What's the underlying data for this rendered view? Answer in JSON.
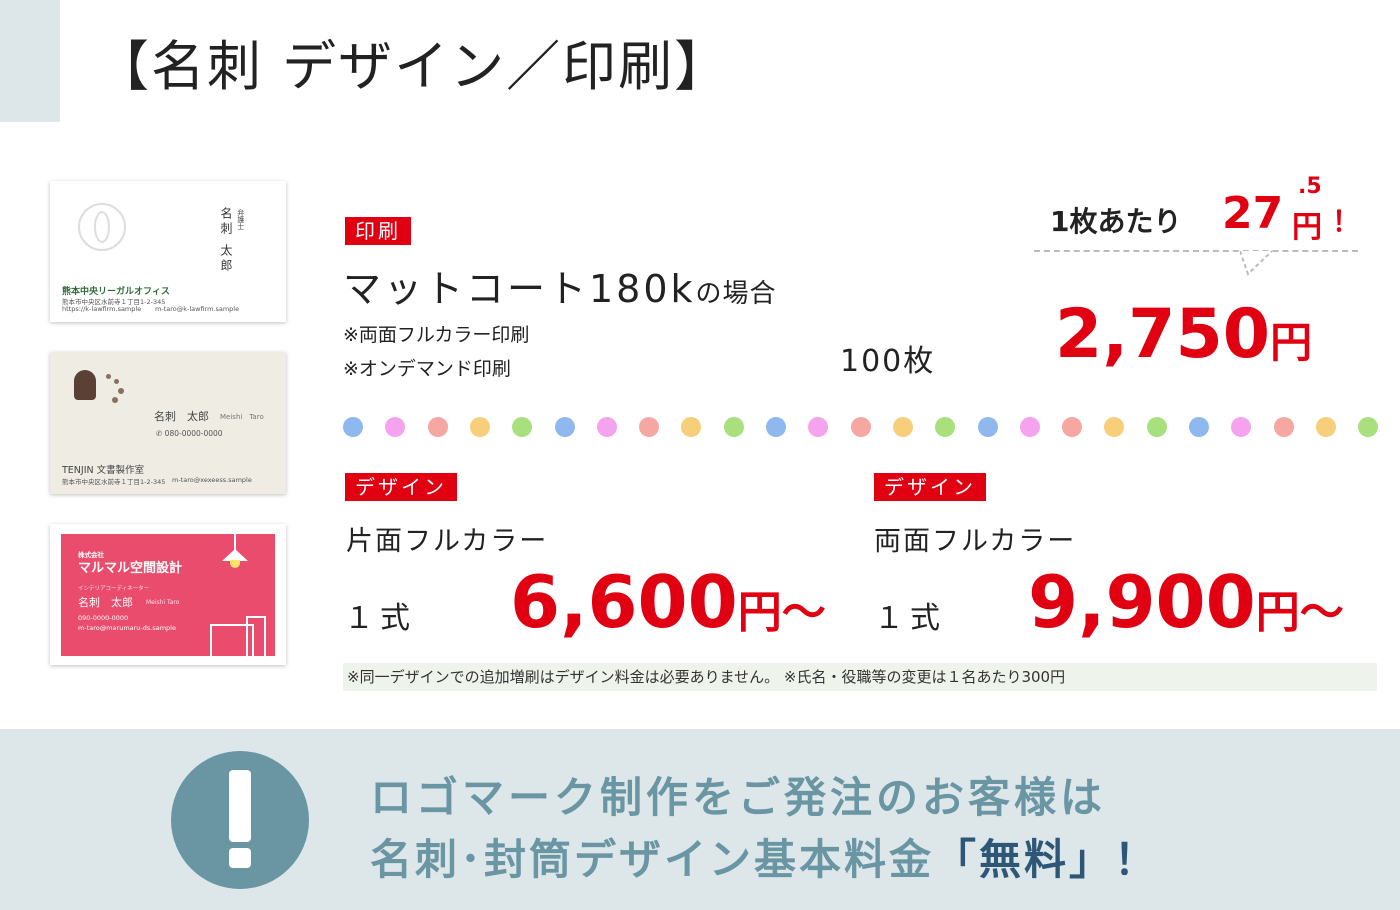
{
  "header": {
    "title": "【名刺 デザイン／印刷】"
  },
  "cards": [
    {
      "title_vertical": "弁護士",
      "name_vertical": "名刺 太郎",
      "firm": "熊本中央リーガルオフィス",
      "address": "熊本市中央区水前寺１丁目1-2-345",
      "url": "https://k-lawfirm.sample",
      "email": "m-taro@k-lawfirm.sample"
    },
    {
      "name": "名刺　太郎",
      "name_en": "Meishi　Taro",
      "tel": "080-0000-0000",
      "studio": "TENJIN 文書製作室",
      "address": "熊本市中央区水前寺１丁目1-2-345",
      "email": "m-taro@xexeess.sample"
    },
    {
      "company_small": "株式会社",
      "company": "マルマル空間設計",
      "role": "インテリアコーディネーター",
      "name": "名刺　太郎",
      "name_en": "Meishi Taro",
      "tel": "090-0000-0000",
      "email": "m-taro@marumaru-ds.sample"
    }
  ],
  "print": {
    "tag": "印刷",
    "heading": "マットコート180k",
    "heading_suffix": "の場合",
    "note_1": "※両面フルカラー印刷",
    "note_2": "※オンデマンド印刷",
    "quantity": "100枚",
    "price": "2,750",
    "yen": "円",
    "unit_label": "1枚あたり",
    "unit_price": "27",
    "unit_decimal": ".5",
    "unit_yen": "円",
    "unit_excl": "！"
  },
  "design": [
    {
      "tag": "デザイン",
      "heading": "片面フルカラー",
      "quantity": "１式",
      "price": "6,600",
      "yen": "円〜"
    },
    {
      "tag": "デザイン",
      "heading": "両面フルカラー",
      "quantity": "１式",
      "price": "9,900",
      "yen": "円〜"
    }
  ],
  "note": "※同一デザインでの追加増刷はデザイン料金は必要ありません。 ※氏名・役職等の変更は１名あたり300円",
  "banner": {
    "line_1": "ロゴマーク制作をご発注のお客様は",
    "line_2": "名刺･封筒デザイン基本料金",
    "free": "「無料」",
    "excl": "！"
  },
  "colors": {
    "accent_red": "#e00012",
    "banner_bg": "#dde7ea",
    "banner_text": "#6a95a3",
    "free_text": "#2d5677",
    "dots": [
      "#8fb8ee",
      "#f5a3ee",
      "#f7a7a1",
      "#f7cf7a",
      "#a7e07d"
    ]
  },
  "icons": [
    "emblem-icon",
    "fountain-pen-icon",
    "phone-icon",
    "lamp-icon",
    "exclamation-icon"
  ]
}
